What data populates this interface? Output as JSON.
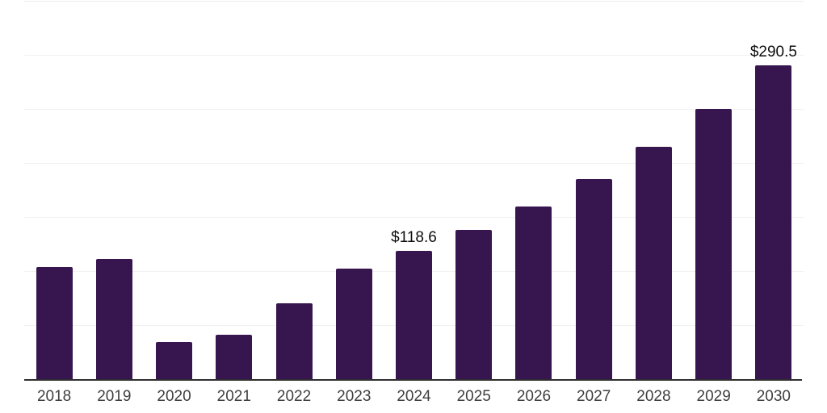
{
  "chart_data": {
    "type": "bar",
    "title": "",
    "xlabel": "",
    "ylabel": "",
    "categories": [
      "2018",
      "2019",
      "2020",
      "2021",
      "2022",
      "2023",
      "2024",
      "2025",
      "2026",
      "2027",
      "2028",
      "2029",
      "2030"
    ],
    "values": [
      104,
      111,
      34,
      41,
      70.5,
      102,
      118.6,
      138,
      160,
      185,
      215,
      250,
      290.5
    ],
    "data_labels": [
      "",
      "",
      "",
      "",
      "",
      "",
      "$118.6",
      "",
      "",
      "",
      "",
      "",
      "$290.5"
    ],
    "ylim": [
      0,
      350
    ],
    "gridline_step": 50,
    "grid": true,
    "y_axis_tick_labels_visible": false,
    "legend_position": "none",
    "colors": {
      "bar": "#371650",
      "gridline": "#f1f1f1",
      "axis_line": "#2e2e2e",
      "tick_label": "#3f3f3f",
      "data_label": "#0d0d0d",
      "background": "#ffffff"
    }
  }
}
